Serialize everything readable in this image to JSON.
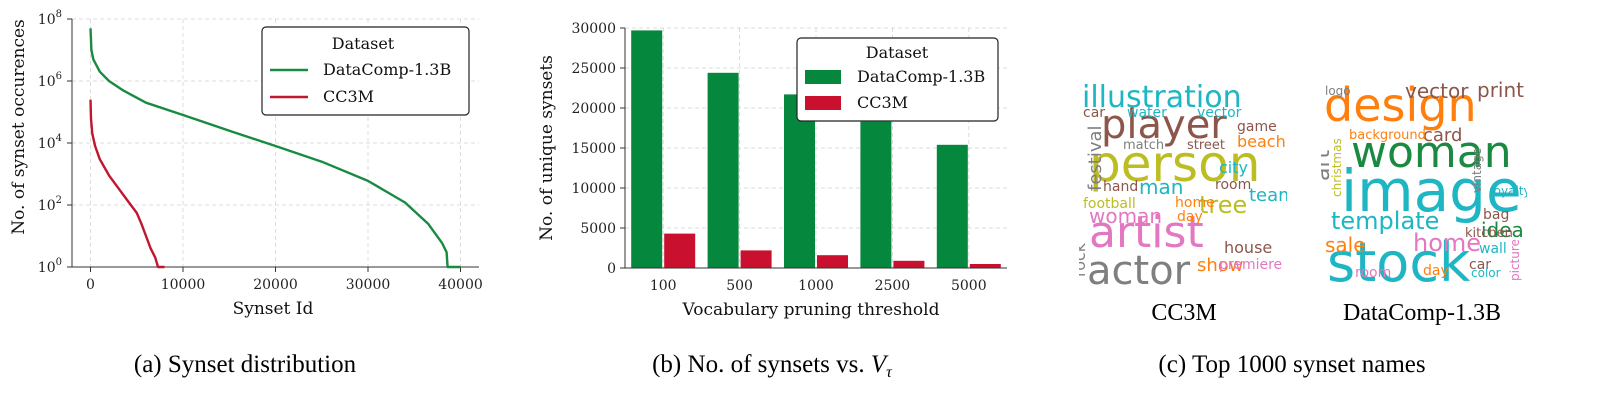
{
  "chart_data": [
    {
      "type": "line",
      "title": "",
      "xlabel": "Synset Id",
      "ylabel": "No. of synset occurences",
      "xlim": [
        -2000,
        42000
      ],
      "ylim_log10": [
        0,
        8
      ],
      "yscale": "log",
      "x_ticks": [
        0,
        10000,
        20000,
        30000,
        40000
      ],
      "y_ticks": [
        "10^0",
        "10^2",
        "10^4",
        "10^6",
        "10^8"
      ],
      "legend": {
        "title": "Dataset",
        "placement": "top-right"
      },
      "grid": true,
      "series": [
        {
          "name": "DataComp-1.3B",
          "color": "#1a8a43",
          "points": [
            [
              0,
              50000000
            ],
            [
              100,
              10000000
            ],
            [
              300,
              5000000
            ],
            [
              1000,
              2000000
            ],
            [
              2000,
              1000000
            ],
            [
              3500,
              500000
            ],
            [
              6000,
              200000
            ],
            [
              10000,
              80000
            ],
            [
              15000,
              25000
            ],
            [
              20000,
              8000
            ],
            [
              25000,
              2500
            ],
            [
              30000,
              600
            ],
            [
              34000,
              120
            ],
            [
              36500,
              25
            ],
            [
              38000,
              6
            ],
            [
              38500,
              3
            ],
            [
              38600,
              1
            ],
            [
              40000,
              1
            ]
          ]
        },
        {
          "name": "CC3M",
          "color": "#c0172e",
          "points": [
            [
              0,
              250000
            ],
            [
              50,
              60000
            ],
            [
              200,
              20000
            ],
            [
              500,
              8000
            ],
            [
              1000,
              3000
            ],
            [
              2000,
              900
            ],
            [
              3000,
              350
            ],
            [
              4000,
              140
            ],
            [
              5000,
              55
            ],
            [
              5500,
              25
            ],
            [
              6000,
              10
            ],
            [
              6500,
              4
            ],
            [
              7000,
              2
            ],
            [
              7300,
              1
            ],
            [
              8000,
              1
            ]
          ]
        }
      ],
      "caption": "(a) Synset distribution"
    },
    {
      "type": "bar",
      "title": "",
      "xlabel": "Vocabulary pruning threshold",
      "ylabel": "No. of unique synsets",
      "categories": [
        "100",
        "500",
        "1000",
        "2500",
        "5000"
      ],
      "ylim": [
        0,
        30000
      ],
      "y_ticks": [
        "0",
        "5000",
        "10000",
        "15000",
        "20000",
        "25000",
        "30000"
      ],
      "legend": {
        "title": "Dataset",
        "placement": "top-right"
      },
      "grid": true,
      "series": [
        {
          "name": "DataComp-1.3B",
          "color": "#05873d",
          "values": [
            29700,
            24400,
            21700,
            18300,
            15400
          ]
        },
        {
          "name": "CC3M",
          "color": "#c9102e",
          "values": [
            4300,
            2200,
            1600,
            900,
            500
          ]
        }
      ],
      "caption_prefix": "(b) No. of synsets vs. ",
      "caption_var": "V",
      "caption_sub": "τ"
    }
  ],
  "wordclouds": {
    "caption": "(c) Top 1000 synset names",
    "panels": [
      {
        "label": "CC3M",
        "words": [
          {
            "text": "illustration",
            "color": "#1fb6c4"
          },
          {
            "text": "player",
            "color": "#8c564b"
          },
          {
            "text": "person",
            "color": "#bcbd22"
          },
          {
            "text": "artist",
            "color": "#e377c2"
          },
          {
            "text": "actor",
            "color": "#7f7f7f"
          },
          {
            "text": "man",
            "color": "#1fb6c4"
          },
          {
            "text": "woman",
            "color": "#e377c2"
          },
          {
            "text": "tree",
            "color": "#bcbd22"
          },
          {
            "text": "football",
            "color": "#bcbd22"
          },
          {
            "text": "house",
            "color": "#8c564b"
          },
          {
            "text": "festival",
            "color": "#7f7f7f"
          },
          {
            "text": "room",
            "color": "#8c564b"
          },
          {
            "text": "water",
            "color": "#1fb6c4"
          },
          {
            "text": "vector",
            "color": "#1fb6c4"
          },
          {
            "text": "city",
            "color": "#1fb6c4"
          },
          {
            "text": "beach",
            "color": "#ff7f0e"
          },
          {
            "text": "game",
            "color": "#8c564b"
          },
          {
            "text": "hand",
            "color": "#8c564b"
          },
          {
            "text": "home",
            "color": "#ff7f0e"
          },
          {
            "text": "day",
            "color": "#ff7f0e"
          },
          {
            "text": "team",
            "color": "#1fb6c4"
          },
          {
            "text": "rock",
            "color": "#7f7f7f"
          },
          {
            "text": "match",
            "color": "#7f7f7f"
          },
          {
            "text": "street",
            "color": "#8c564b"
          },
          {
            "text": "show",
            "color": "#ff7f0e"
          },
          {
            "text": "premiere",
            "color": "#e377c2"
          },
          {
            "text": "car",
            "color": "#8c564b"
          }
        ]
      },
      {
        "label": "DataComp-1.3B",
        "words": [
          {
            "text": "design",
            "color": "#ff7f0e"
          },
          {
            "text": "woman",
            "color": "#1a8a43"
          },
          {
            "text": "image",
            "color": "#1fb6c4"
          },
          {
            "text": "stock",
            "color": "#1fb6c4"
          },
          {
            "text": "template",
            "color": "#1fb6c4"
          },
          {
            "text": "home",
            "color": "#e377c2"
          },
          {
            "text": "vector",
            "color": "#8c564b"
          },
          {
            "text": "print",
            "color": "#8c564b"
          },
          {
            "text": "sale",
            "color": "#ff7f0e"
          },
          {
            "text": "idea",
            "color": "#1a8a43"
          },
          {
            "text": "card",
            "color": "#8c564b"
          },
          {
            "text": "art",
            "color": "#7f7f7f"
          },
          {
            "text": "room",
            "color": "#e377c2"
          },
          {
            "text": "car",
            "color": "#8c564b"
          },
          {
            "text": "wall",
            "color": "#1fb6c4"
          },
          {
            "text": "kitchen",
            "color": "#8c564b"
          },
          {
            "text": "background",
            "color": "#ff7f0e"
          },
          {
            "text": "vintage",
            "color": "#7f7f7f"
          },
          {
            "text": "christmas",
            "color": "#bcbd22"
          },
          {
            "text": "bag",
            "color": "#8c564b"
          },
          {
            "text": "logo",
            "color": "#7f7f7f"
          },
          {
            "text": "day",
            "color": "#ff7f0e"
          },
          {
            "text": "royalty",
            "color": "#1fb6c4"
          },
          {
            "text": "picture",
            "color": "#e377c2"
          },
          {
            "text": "color",
            "color": "#1fb6c4"
          }
        ]
      }
    ]
  }
}
